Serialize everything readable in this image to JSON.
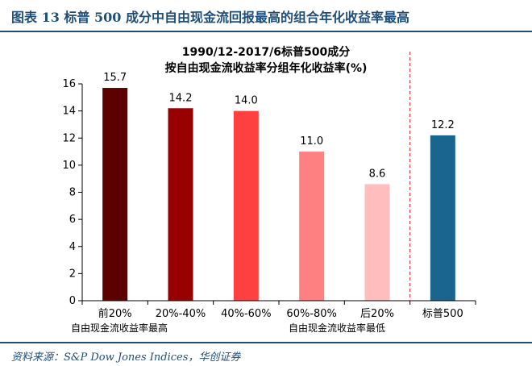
{
  "figure": {
    "title": "图表 13  标普 500 成分中自由现金流回报最高的组合年化收益率最高",
    "source": "资料来源：S&P Dow Jones Indices，华创证券"
  },
  "chart_data": {
    "type": "bar",
    "title": "1990/12-2017/6标普500成分",
    "subtitle": "按自由现金流收益率分组年化收益率(%)",
    "xlabel": "",
    "ylabel": "",
    "categories": [
      "前20%",
      "20%-40%",
      "40%-60%",
      "60%-80%",
      "后20%",
      "标普500"
    ],
    "values": [
      15.7,
      14.2,
      14.0,
      11.0,
      8.6,
      12.2
    ],
    "data_labels": [
      "15.7",
      "14.2",
      "14.0",
      "11.0",
      "8.6",
      "12.2"
    ],
    "colors": [
      "#5c0000",
      "#990000",
      "#ff4040",
      "#ff8080",
      "#ffbdbd",
      "#1a6490"
    ],
    "ylim": [
      0,
      16
    ],
    "yticks": [
      0,
      2,
      4,
      6,
      8,
      10,
      12,
      14,
      16
    ],
    "grid": false,
    "legend": "none",
    "annotations": [
      "自由现金流收益率最高",
      "自由现金流收益率最低"
    ],
    "separator": "dashed vertical red line between 后20% and 标普500"
  }
}
